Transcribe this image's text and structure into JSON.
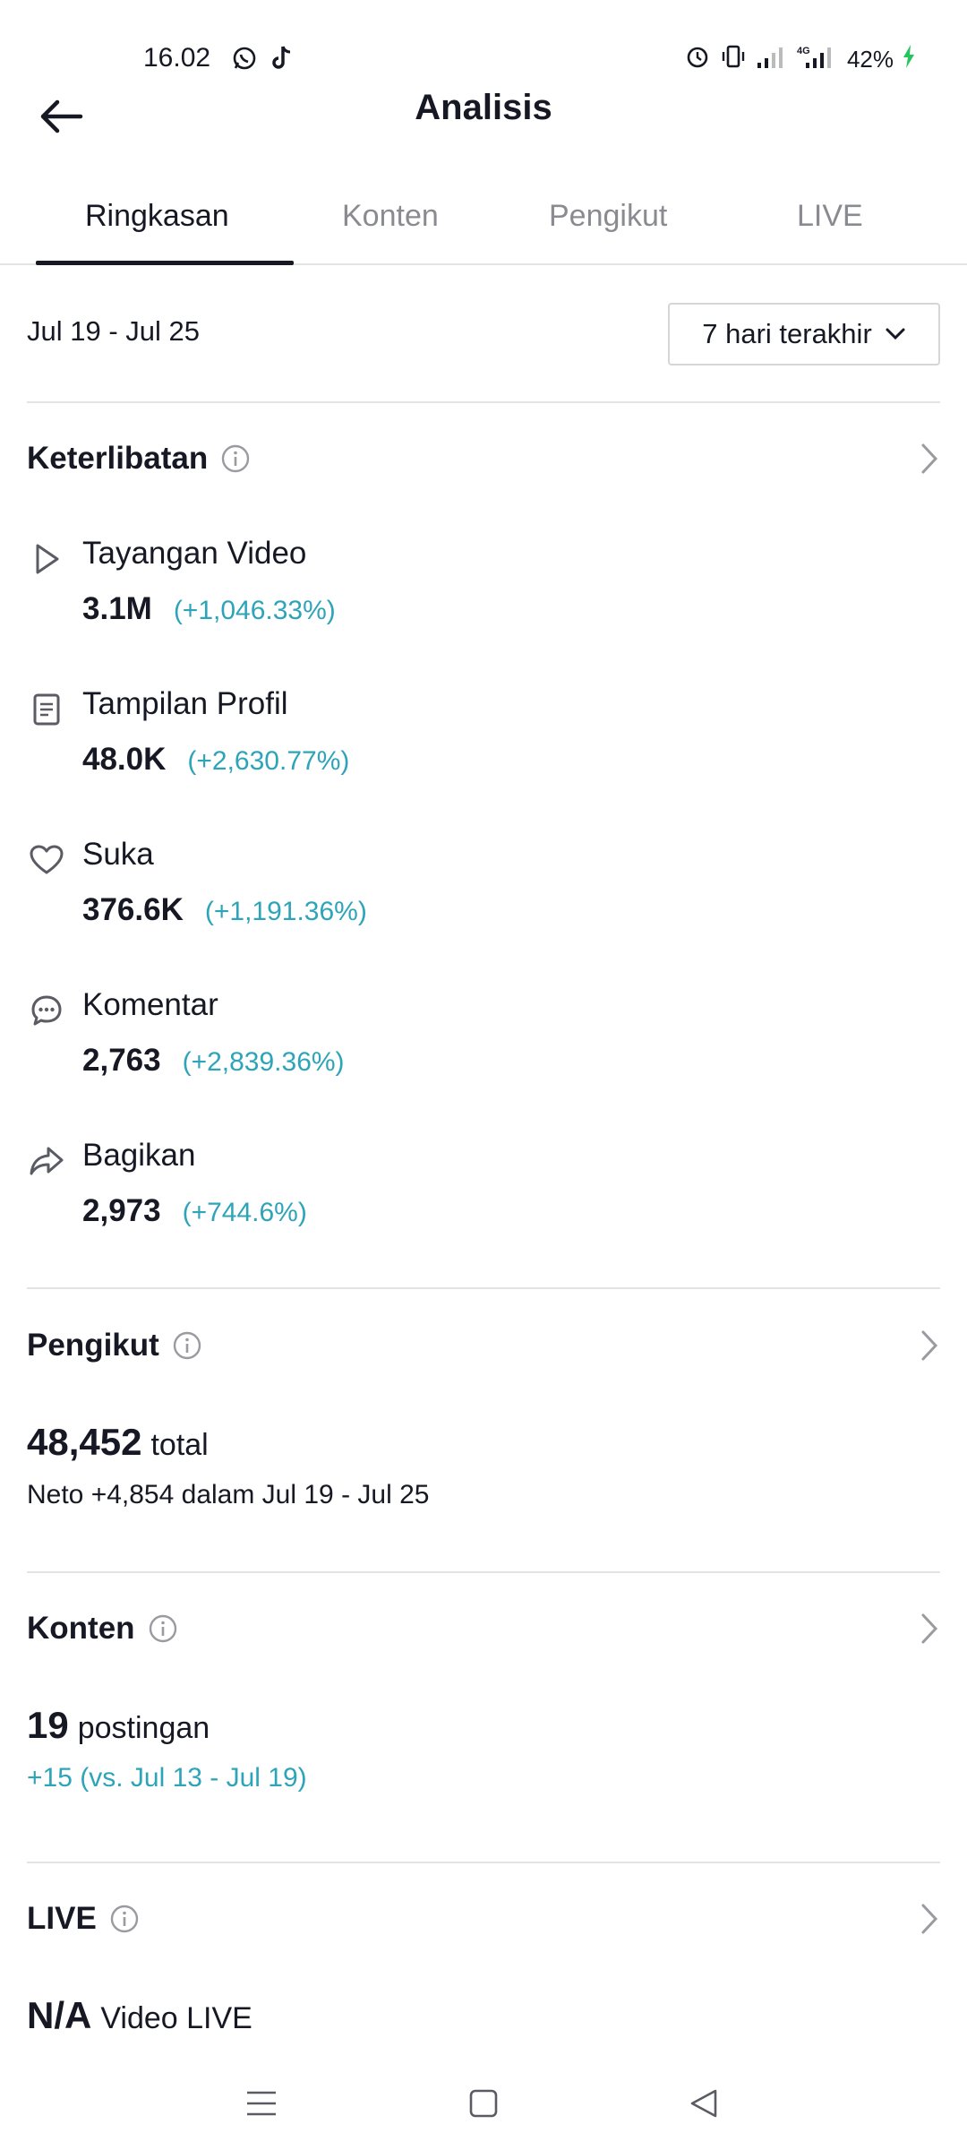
{
  "status_bar": {
    "time": "16.02",
    "battery": "42%",
    "network": "4G"
  },
  "header": {
    "title": "Analisis"
  },
  "tabs": [
    {
      "label": "Ringkasan",
      "active": true
    },
    {
      "label": "Konten",
      "active": false
    },
    {
      "label": "Pengikut",
      "active": false
    },
    {
      "label": "LIVE",
      "active": false
    }
  ],
  "date": {
    "range": "Jul 19 - Jul 25",
    "period": "7 hari terakhir"
  },
  "engagement": {
    "title": "Keterlibatan",
    "metrics": [
      {
        "icon": "play-icon",
        "label": "Tayangan Video",
        "value": "3.1M",
        "change": "(+1,046.33%)"
      },
      {
        "icon": "profile-icon",
        "label": "Tampilan Profil",
        "value": "48.0K",
        "change": "(+2,630.77%)"
      },
      {
        "icon": "heart-icon",
        "label": "Suka",
        "value": "376.6K",
        "change": "(+1,191.36%)"
      },
      {
        "icon": "comment-icon",
        "label": "Komentar",
        "value": "2,763",
        "change": "(+2,839.36%)"
      },
      {
        "icon": "share-icon",
        "label": "Bagikan",
        "value": "2,973",
        "change": "(+744.6%)"
      }
    ]
  },
  "followers": {
    "title": "Pengikut",
    "total": "48,452",
    "total_unit": "total",
    "net": "Neto +4,854 dalam Jul 19 - Jul 25"
  },
  "content": {
    "title": "Konten",
    "count": "19",
    "unit": "postingan",
    "change": "+15 (vs. Jul 13 - Jul 19)"
  },
  "live": {
    "title": "LIVE",
    "value": "N/A",
    "unit": "Video LIVE"
  },
  "colors": {
    "accent_teal": "#2ea4b9",
    "text_primary": "#161823",
    "text_secondary": "#8a8b91"
  }
}
